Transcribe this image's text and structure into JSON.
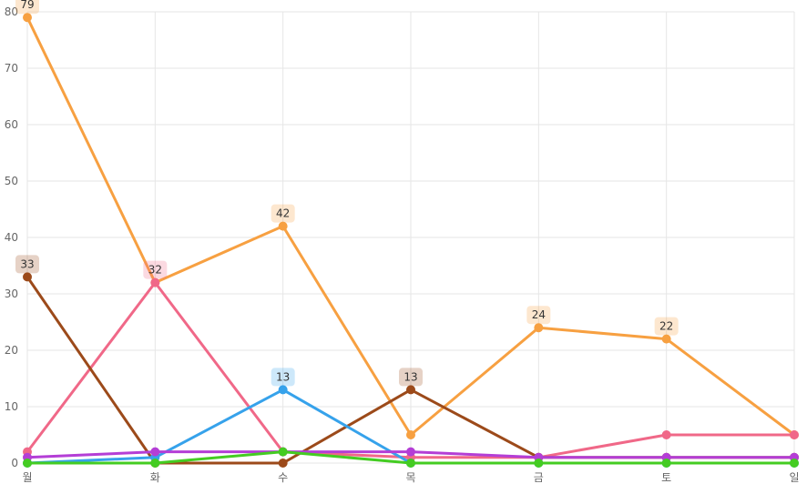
{
  "chart_data": {
    "type": "line",
    "categories": [
      "월",
      "화",
      "수",
      "목",
      "금",
      "토",
      "일"
    ],
    "ylim": [
      0,
      80
    ],
    "y_ticks": [
      0,
      10,
      20,
      30,
      40,
      50,
      60,
      70,
      80
    ],
    "grid": true,
    "series": [
      {
        "color": "#f7a041",
        "values": [
          79,
          32,
          42,
          5,
          24,
          22,
          5
        ],
        "labels": [
          79,
          null,
          42,
          null,
          24,
          22,
          null
        ]
      },
      {
        "color": "#f06888",
        "values": [
          2,
          32,
          2,
          1,
          1,
          5,
          5
        ],
        "labels": [
          null,
          32,
          null,
          null,
          null,
          null,
          null
        ]
      },
      {
        "color": "#9c4a1a",
        "values": [
          33,
          0,
          0,
          13,
          1,
          1,
          1
        ],
        "labels": [
          33,
          null,
          null,
          13,
          null,
          null,
          null
        ]
      },
      {
        "color": "#36a2eb",
        "values": [
          0,
          1,
          13,
          0,
          0,
          0,
          0
        ],
        "labels": [
          null,
          null,
          13,
          null,
          null,
          null,
          null
        ]
      },
      {
        "color": "#b43ed6",
        "values": [
          1,
          2,
          2,
          2,
          1,
          1,
          1
        ],
        "labels": [
          null,
          null,
          null,
          null,
          null,
          null,
          null
        ]
      },
      {
        "color": "#44cc22",
        "values": [
          0,
          0,
          2,
          0,
          0,
          0,
          0
        ],
        "labels": [
          null,
          null,
          null,
          null,
          null,
          null,
          null
        ]
      }
    ]
  }
}
